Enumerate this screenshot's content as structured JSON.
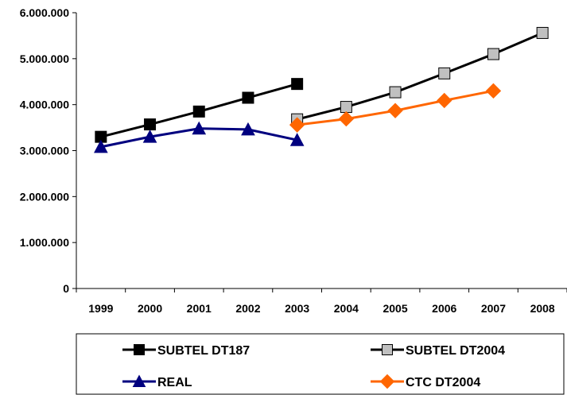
{
  "chart_data": {
    "type": "line",
    "categories": [
      "1999",
      "2000",
      "2001",
      "2002",
      "2003",
      "2004",
      "2005",
      "2006",
      "2007",
      "2008"
    ],
    "ylim": [
      0,
      6000000
    ],
    "yticks": [
      0,
      1000000,
      2000000,
      3000000,
      4000000,
      5000000,
      6000000
    ],
    "ytick_labels": [
      "0",
      "1.000.000",
      "2.000.000",
      "3.000.000",
      "4.000.000",
      "5.000.000",
      "6.000.000"
    ],
    "grid": false,
    "legend_position": "bottom",
    "series": [
      {
        "name": "SUBTEL DT187",
        "color": "#000000",
        "marker": "square-filled",
        "values": [
          3300000,
          3570000,
          3850000,
          4150000,
          4450000,
          null,
          null,
          null,
          null,
          null
        ]
      },
      {
        "name": "SUBTEL DT2004",
        "color": "#000000",
        "marker": "square-gray",
        "values": [
          null,
          null,
          null,
          null,
          3680000,
          3950000,
          4270000,
          4680000,
          5100000,
          5560000
        ]
      },
      {
        "name": "REAL",
        "color": "#00007f",
        "marker": "triangle",
        "values": [
          3080000,
          3300000,
          3480000,
          3460000,
          3230000,
          null,
          null,
          null,
          null,
          null
        ]
      },
      {
        "name": "CTC DT2004",
        "color": "#ff6600",
        "marker": "diamond",
        "values": [
          null,
          null,
          null,
          null,
          3560000,
          3690000,
          3870000,
          4090000,
          4300000,
          null
        ]
      }
    ]
  }
}
